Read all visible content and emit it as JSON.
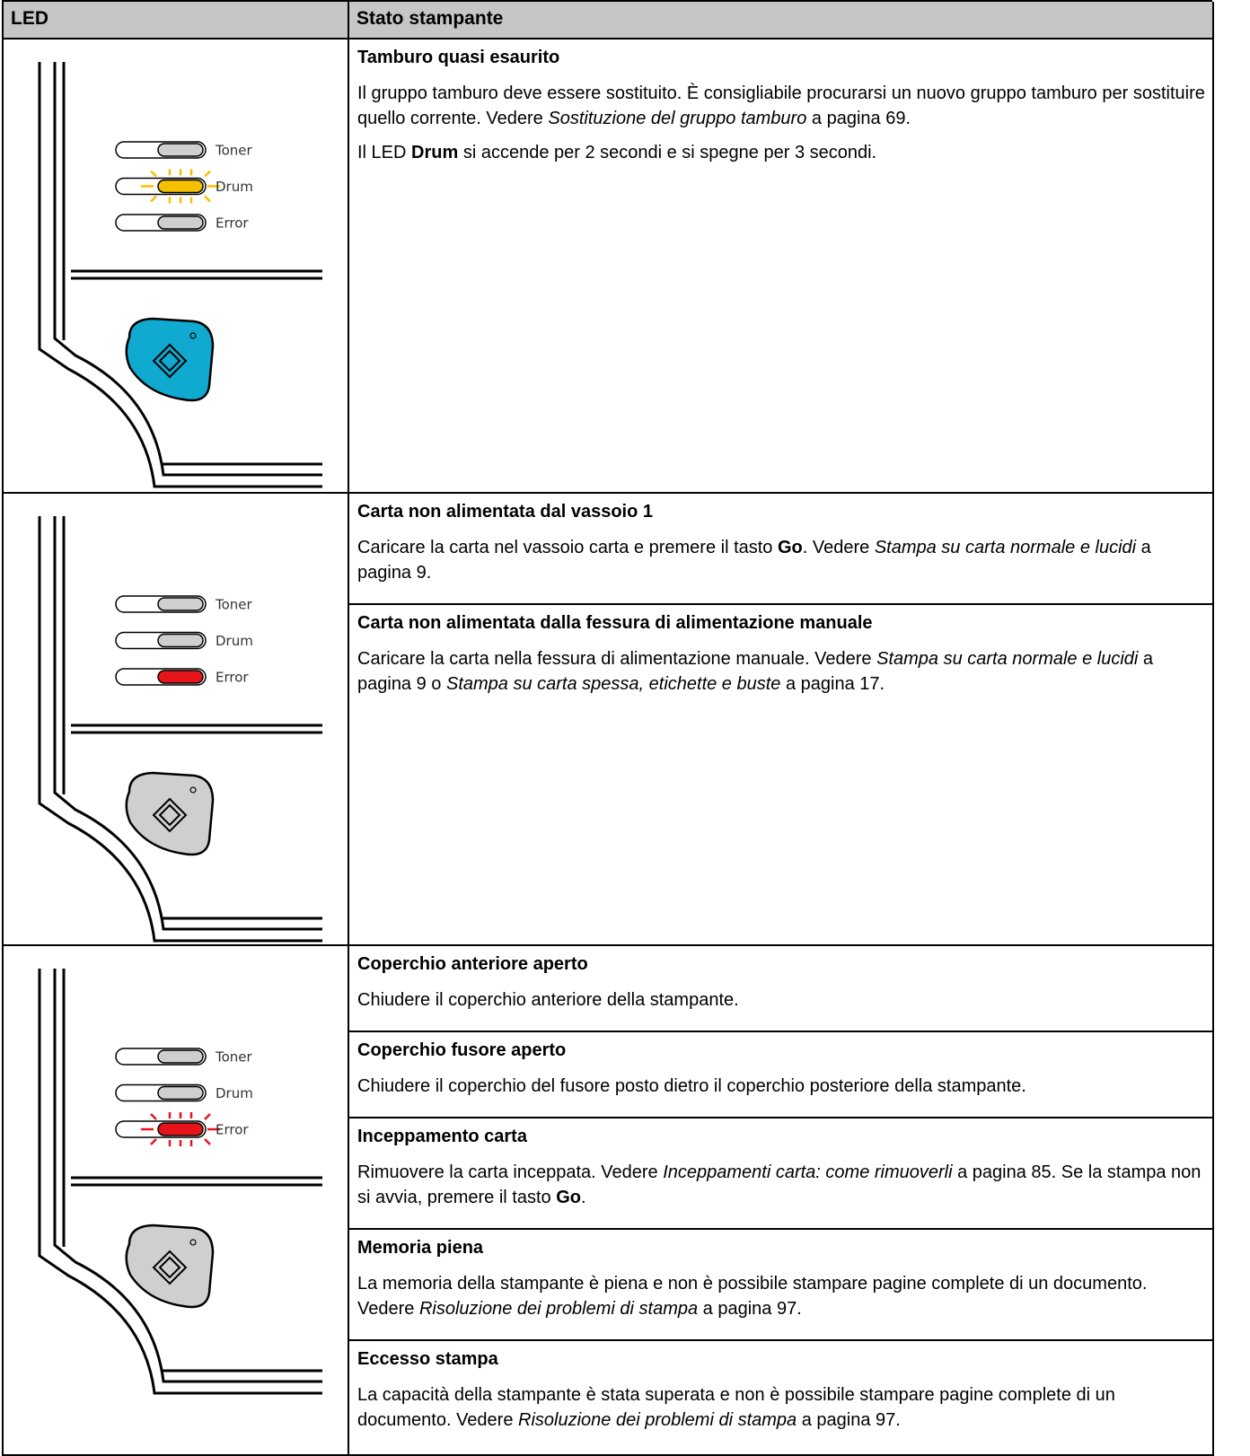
{
  "header": {
    "led": "LED",
    "status": "Stato stampante"
  },
  "rows": [
    {
      "panel": {
        "button_color": "#10aad0",
        "leds": [
          {
            "label": "Toner",
            "color": "#cfcfcf",
            "blink": false
          },
          {
            "label": "Drum",
            "color": "#f5c000",
            "blink": true
          },
          {
            "label": "Error",
            "color": "#cfcfcf",
            "blink": false
          }
        ]
      },
      "entries": [
        {
          "title": "Tamburo quasi esaurito",
          "paragraphs": [
            [
              {
                "t": "Il gruppo tamburo deve essere sostituito. È consigliabile procurarsi un nuovo gruppo tamburo per sostituire quello corrente. Vedere "
              },
              {
                "t": "Sostituzione del gruppo tamburo",
                "style": "italic"
              },
              {
                "t": " a pagina 69."
              }
            ],
            [
              {
                "t": "Il LED "
              },
              {
                "t": "Drum",
                "style": "bold"
              },
              {
                "t": " si accende per 2 secondi e si spegne per 3 secondi."
              }
            ]
          ]
        }
      ]
    },
    {
      "panel": {
        "button_color": "#cfcfcf",
        "leds": [
          {
            "label": "Toner",
            "color": "#cfcfcf",
            "blink": false
          },
          {
            "label": "Drum",
            "color": "#cfcfcf",
            "blink": false
          },
          {
            "label": "Error",
            "color": "#e8141c",
            "blink": false
          }
        ]
      },
      "entries": [
        {
          "title": "Carta non alimentata dal vassoio 1",
          "paragraphs": [
            [
              {
                "t": "Caricare la carta nel vassoio carta e premere il tasto "
              },
              {
                "t": "Go",
                "style": "bold"
              },
              {
                "t": ". Vedere "
              },
              {
                "t": "Stampa su carta normale e lucidi",
                "style": "italic"
              },
              {
                "t": " a pagina 9."
              }
            ]
          ]
        },
        {
          "title": "Carta non alimentata dalla fessura di alimentazione manuale",
          "paragraphs": [
            [
              {
                "t": "Caricare la carta nella fessura di alimentazione manuale. Vedere "
              },
              {
                "t": "Stampa su carta normale e lucidi",
                "style": "italic"
              },
              {
                "t": " a pagina 9 o "
              },
              {
                "t": "Stampa su carta spessa, etichette e buste",
                "style": "italic"
              },
              {
                "t": " a pagina 17."
              }
            ]
          ]
        }
      ]
    },
    {
      "panel": {
        "button_color": "#cfcfcf",
        "leds": [
          {
            "label": "Toner",
            "color": "#cfcfcf",
            "blink": false
          },
          {
            "label": "Drum",
            "color": "#cfcfcf",
            "blink": false
          },
          {
            "label": "Error",
            "color": "#e8141c",
            "blink": true
          }
        ]
      },
      "entries": [
        {
          "title": "Coperchio anteriore aperto",
          "paragraphs": [
            [
              {
                "t": "Chiudere il coperchio anteriore della stampante."
              }
            ]
          ]
        },
        {
          "title": "Coperchio fusore aperto",
          "paragraphs": [
            [
              {
                "t": "Chiudere il coperchio del fusore posto dietro il coperchio posteriore della stampante."
              }
            ]
          ]
        },
        {
          "title": "Inceppamento carta",
          "paragraphs": [
            [
              {
                "t": "Rimuovere la carta inceppata. Vedere "
              },
              {
                "t": "Inceppamenti carta: come rimuoverli",
                "style": "italic"
              },
              {
                "t": " a pagina 85. Se la stampa non si avvia, premere il tasto "
              },
              {
                "t": "Go",
                "style": "bold"
              },
              {
                "t": "."
              }
            ]
          ]
        },
        {
          "title": "Memoria piena",
          "paragraphs": [
            [
              {
                "t": "La memoria della stampante è piena e non è possibile stampare pagine complete di un documento. Vedere "
              },
              {
                "t": "Risoluzione dei problemi di stampa",
                "style": "italic"
              },
              {
                "t": " a pagina 97."
              }
            ]
          ]
        },
        {
          "title": "Eccesso stampa",
          "paragraphs": [
            [
              {
                "t": "La capacità della stampante è stata superata e non è possibile stampare pagine complete di un documento. Vedere "
              },
              {
                "t": "Risoluzione dei problemi di stampa",
                "style": "italic"
              },
              {
                "t": " a pagina 97."
              }
            ]
          ]
        }
      ]
    }
  ]
}
